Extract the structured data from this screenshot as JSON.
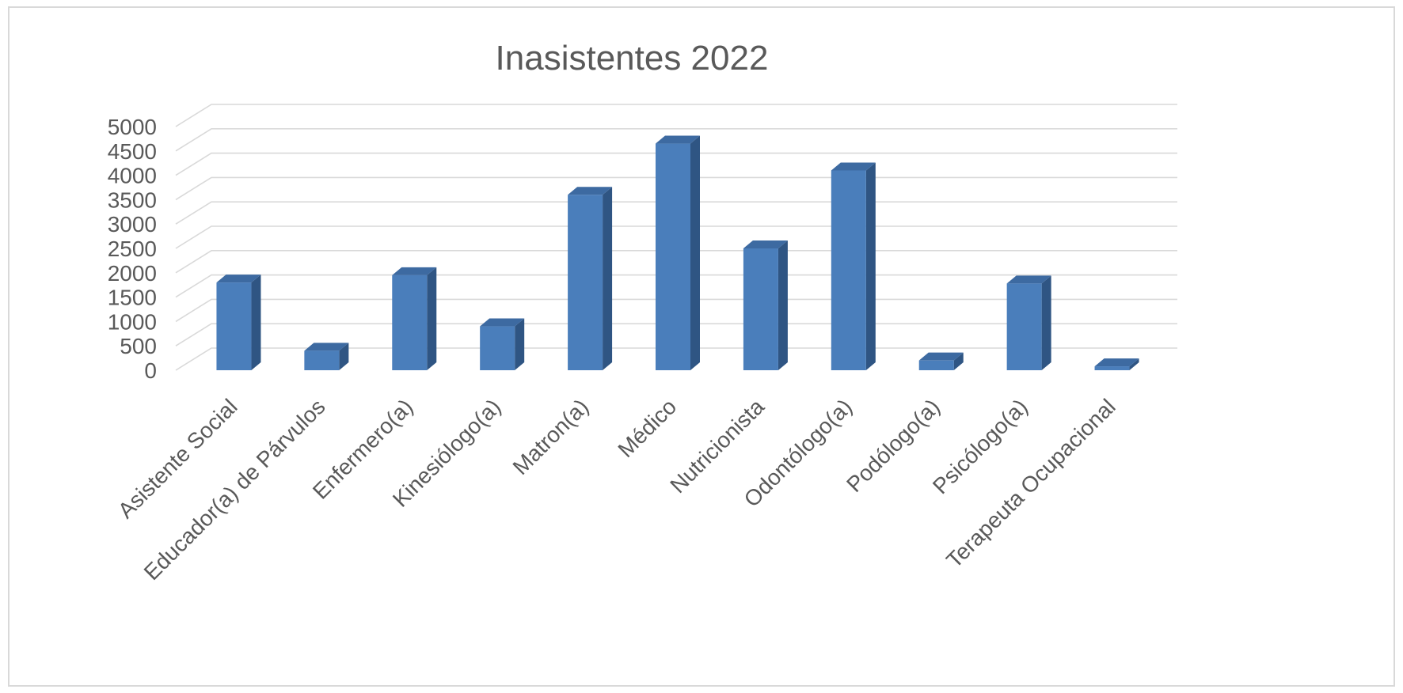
{
  "chart_data": {
    "type": "bar",
    "title": "Inasistentes 2022",
    "xlabel": "",
    "ylabel": "",
    "ylim": [
      0,
      5000
    ],
    "yticks": [
      "0",
      "500",
      "1000",
      "1500",
      "2000",
      "2500",
      "3000",
      "3500",
      "4000",
      "4500",
      "5000"
    ],
    "grid": true,
    "legend": "none",
    "style": "3d-column",
    "categories": [
      "Asistente Social",
      "Educador(a) de Párvulos",
      "Enfermero(a)",
      "Kinesiólogo(a)",
      "Matron(a)",
      "Médico",
      "Nutricionista",
      "Odontólogo(a)",
      "Podólogo(a)",
      "Psicólogo(a)",
      "Terapeuta Ocupacional"
    ],
    "values": [
      1800,
      400,
      1950,
      900,
      3600,
      4650,
      2500,
      4100,
      200,
      1780,
      80
    ],
    "colors": {
      "bar_front": "#4a7ebb",
      "bar_side": "#2f5583",
      "bar_top": "#3d6aa1",
      "grid": "#d9d9d9",
      "text": "#595959"
    }
  }
}
